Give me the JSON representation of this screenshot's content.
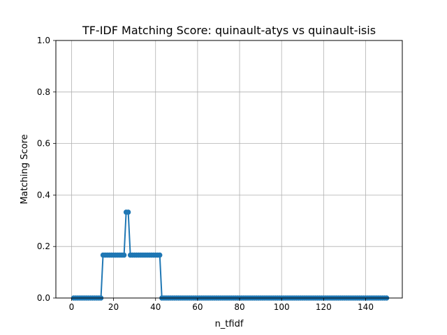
{
  "chart_data": {
    "type": "line",
    "title": "TF-IDF Matching Score: quinault-atys vs quinault-isis",
    "xlabel": "n_tfidf",
    "ylabel": "Matching Score",
    "xlim": [
      -7.45,
      157.45
    ],
    "ylim": [
      0.0,
      1.0
    ],
    "xticks": [
      0,
      20,
      40,
      60,
      80,
      100,
      120,
      140
    ],
    "yticks": [
      0.0,
      0.2,
      0.4,
      0.6,
      0.8,
      1.0
    ],
    "xtick_labels": [
      "0",
      "20",
      "40",
      "60",
      "80",
      "100",
      "120",
      "140"
    ],
    "ytick_labels": [
      "0.0",
      "0.2",
      "0.4",
      "0.6",
      "0.8",
      "1.0"
    ],
    "grid": true,
    "series": [
      {
        "color": "#1f77b4",
        "marker": "circle",
        "segments": [
          {
            "x_start": 1,
            "x_end": 14,
            "y": 0.0
          },
          {
            "x_start": 15,
            "x_end": 25,
            "y": 0.1667
          },
          {
            "x_start": 26,
            "x_end": 27,
            "y": 0.3333
          },
          {
            "x_start": 28,
            "x_end": 42,
            "y": 0.1667
          },
          {
            "x_start": 43,
            "x_end": 150,
            "y": 0.0
          }
        ]
      }
    ]
  }
}
